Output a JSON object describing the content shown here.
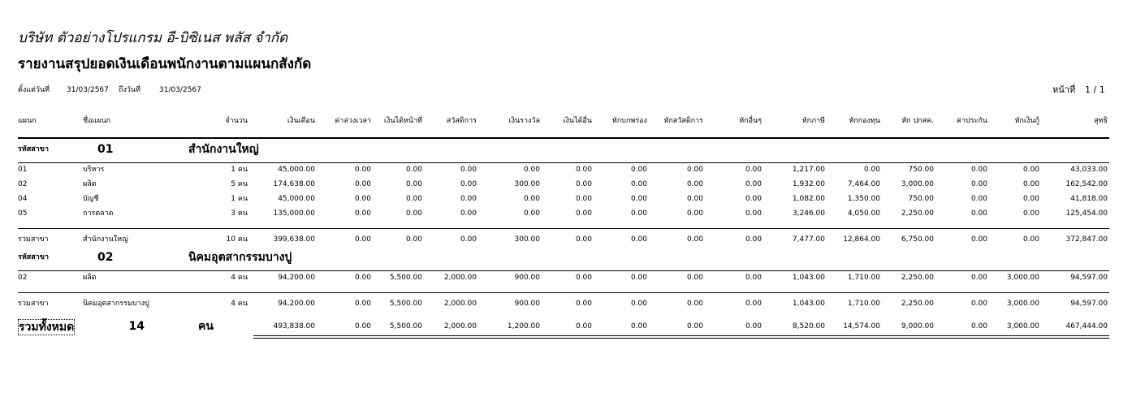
{
  "header": {
    "company": "บริษัท ตัวอย่างโปรแกรม อี-บิซิเนส พลัส  จำกัด",
    "title": "รายงานสรุปยอดเงินเดือนพนักงานตามแผนกสังกัด",
    "from_label": "ตั้งแต่วันที่",
    "from_date": "31/03/2567",
    "to_label": "ถึงวันที่",
    "to_date": "31/03/2567",
    "page_label": "หน้าที่",
    "page": "1 / 1"
  },
  "columns": [
    "แผนก",
    "ชื่อแผนก",
    "จำนวน",
    "เงินเดือน",
    "ค่าล่วงเวลา",
    "เงินได้หน้าที่",
    "สวัสดิการ",
    "เงินรางวัล",
    "เงินได้อื่น",
    "หักบกพร่อง",
    "หักสวัสดิการ",
    "หักอื่นๆ",
    "หักภาษี",
    "หักกองทุน",
    "หัก ปกสค.",
    "ค่าประกัน",
    "หักเงินกู้",
    "สุทธิ"
  ],
  "branches": [
    {
      "label": "รหัสสาขา",
      "code": "01",
      "name": "สำนักงานใหญ่",
      "rows": [
        [
          "01",
          "บริหาร",
          "1 คน",
          "45,000.00",
          "0.00",
          "0.00",
          "0.00",
          "0.00",
          "0.00",
          "0.00",
          "0.00",
          "0.00",
          "1,217.00",
          "0.00",
          "750.00",
          "0.00",
          "0.00",
          "43,033.00"
        ],
        [
          "02",
          "ผลิต",
          "5 คน",
          "174,638.00",
          "0.00",
          "0.00",
          "0.00",
          "300.00",
          "0.00",
          "0.00",
          "0.00",
          "0.00",
          "1,932.00",
          "7,464.00",
          "3,000.00",
          "0.00",
          "0.00",
          "162,542.00"
        ],
        [
          "04",
          "บัญชี",
          "1 คน",
          "45,000.00",
          "0.00",
          "0.00",
          "0.00",
          "0.00",
          "0.00",
          "0.00",
          "0.00",
          "0.00",
          "1,082.00",
          "1,350.00",
          "750.00",
          "0.00",
          "0.00",
          "41,818.00"
        ],
        [
          "05",
          "การตลาด",
          "3 คน",
          "135,000.00",
          "0.00",
          "0.00",
          "0.00",
          "0.00",
          "0.00",
          "0.00",
          "0.00",
          "0.00",
          "3,246.00",
          "4,050.00",
          "2,250.00",
          "0.00",
          "0.00",
          "125,454.00"
        ]
      ],
      "total": [
        "รวมสาขา",
        "สำนักงานใหญ่",
        "10 คน",
        "399,638.00",
        "0.00",
        "0.00",
        "0.00",
        "300.00",
        "0.00",
        "0.00",
        "0.00",
        "0.00",
        "7,477.00",
        "12,864.00",
        "6,750.00",
        "0.00",
        "0.00",
        "372,847.00"
      ]
    },
    {
      "label": "รหัสสาขา",
      "code": "02",
      "name": "นิคมอุตสากรรมบางปู",
      "rows": [
        [
          "02",
          "ผลิต",
          "4 คน",
          "94,200.00",
          "0.00",
          "5,500.00",
          "2,000.00",
          "900.00",
          "0.00",
          "0.00",
          "0.00",
          "0.00",
          "1,043.00",
          "1,710.00",
          "2,250.00",
          "0.00",
          "3,000.00",
          "94,597.00"
        ]
      ],
      "total": [
        "รวมสาขา",
        "นิคมอุตสากรรมบางปู",
        "4 คน",
        "94,200.00",
        "0.00",
        "5,500.00",
        "2,000.00",
        "900.00",
        "0.00",
        "0.00",
        "0.00",
        "0.00",
        "1,043.00",
        "1,710.00",
        "2,250.00",
        "0.00",
        "3,000.00",
        "94,597.00"
      ]
    }
  ],
  "grand_total": {
    "label": "รวมทั้งหมด",
    "count": "14",
    "unit": "คน",
    "values": [
      "493,838.00",
      "0.00",
      "5,500.00",
      "2,000.00",
      "1,200.00",
      "0.00",
      "0.00",
      "0.00",
      "0.00",
      "8,520.00",
      "14,574.00",
      "9,000.00",
      "0.00",
      "3,000.00",
      "467,444.00"
    ]
  }
}
